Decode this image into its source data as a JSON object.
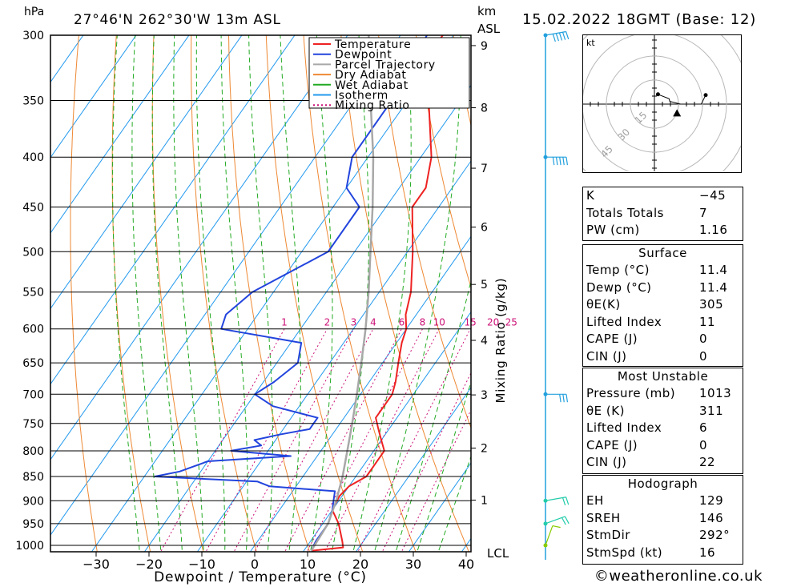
{
  "header": {
    "location": "27°46'N  262°30'W  13m  ASL",
    "datetime": "15.02.2022  18GMT  (Base: 12)",
    "hpa_label": "hPa",
    "km_label": "km",
    "asl_label": "ASL"
  },
  "chart_data": {
    "type": "line",
    "xlabel": "Dewpoint / Temperature (°C)",
    "ylabel": "hPa",
    "right_label": "Mixing Ratio (g/kg)",
    "xlim": [
      -40,
      40
    ],
    "ylim": [
      1013,
      300
    ],
    "x_ticks": [
      "−30",
      "−20",
      "−10",
      "0",
      "10",
      "20",
      "30",
      "40"
    ],
    "pressure_levels": [
      300,
      350,
      400,
      450,
      500,
      550,
      600,
      650,
      700,
      750,
      800,
      850,
      900,
      950,
      1000
    ],
    "km_ticks": [
      "1",
      "2",
      "3",
      "4",
      "5",
      "6",
      "7",
      "8",
      "9"
    ],
    "lcl_label": "LCL",
    "mixing_ratio_labels": [
      "1",
      "2",
      "3",
      "4",
      "6",
      "8",
      "10",
      "15",
      "20",
      "25"
    ],
    "legend": [
      "Temperature",
      "Dewpoint",
      "Parcel Trajectory",
      "Dry Adiabat",
      "Wet Adiabat",
      "Isotherm",
      "Mixing Ratio"
    ],
    "colors": {
      "temperature": "#ee2222",
      "dewpoint": "#2244dd",
      "parcel": "#a8a8a8",
      "dry_adiabat": "#ee8833",
      "wet_adiabat": "#22aa22",
      "isotherm": "#2299ee",
      "mixing_ratio": "#cc1177"
    },
    "series": [
      {
        "name": "Temperature",
        "points": [
          [
            1013,
            11.4
          ],
          [
            1005,
            17
          ],
          [
            990,
            16
          ],
          [
            950,
            13
          ],
          [
            920,
            10
          ],
          [
            890,
            9.5
          ],
          [
            870,
            10
          ],
          [
            850,
            12
          ],
          [
            830,
            12
          ],
          [
            800,
            12
          ],
          [
            780,
            10
          ],
          [
            760,
            8
          ],
          [
            740,
            6
          ],
          [
            720,
            6
          ],
          [
            700,
            6
          ],
          [
            680,
            5
          ],
          [
            650,
            3
          ],
          [
            620,
            1
          ],
          [
            600,
            0
          ],
          [
            580,
            -2
          ],
          [
            550,
            -4
          ],
          [
            500,
            -9
          ],
          [
            450,
            -15
          ],
          [
            430,
            -15
          ],
          [
            400,
            -18
          ],
          [
            350,
            -26
          ],
          [
            310,
            -32
          ],
          [
            300,
            -32
          ]
        ]
      },
      {
        "name": "Dewpoint",
        "points": [
          [
            1013,
            11.4
          ],
          [
            990,
            11
          ],
          [
            950,
            11
          ],
          [
            920,
            10
          ],
          [
            900,
            9
          ],
          [
            880,
            8
          ],
          [
            870,
            -5
          ],
          [
            860,
            -8
          ],
          [
            850,
            -28
          ],
          [
            840,
            -24
          ],
          [
            830,
            -22
          ],
          [
            820,
            -20
          ],
          [
            810,
            -5
          ],
          [
            800,
            -17
          ],
          [
            790,
            -12
          ],
          [
            780,
            -14
          ],
          [
            770,
            -10
          ],
          [
            760,
            -5
          ],
          [
            740,
            -5
          ],
          [
            720,
            -15
          ],
          [
            700,
            -20
          ],
          [
            680,
            -18
          ],
          [
            650,
            -16
          ],
          [
            620,
            -18
          ],
          [
            600,
            -35
          ],
          [
            580,
            -36
          ],
          [
            550,
            -34
          ],
          [
            500,
            -25
          ],
          [
            450,
            -25
          ],
          [
            430,
            -30
          ],
          [
            400,
            -33
          ],
          [
            350,
            -33
          ],
          [
            320,
            -34
          ],
          [
            300,
            -35
          ]
        ]
      },
      {
        "name": "Parcel Trajectory",
        "points": [
          [
            1013,
            11.4
          ],
          [
            950,
            11
          ],
          [
            900,
            9.5
          ],
          [
            850,
            7.5
          ],
          [
            800,
            5
          ],
          [
            750,
            2.3
          ],
          [
            700,
            -0.7
          ],
          [
            650,
            -4
          ],
          [
            600,
            -7.7
          ],
          [
            550,
            -12
          ],
          [
            500,
            -17
          ],
          [
            450,
            -22.5
          ],
          [
            400,
            -29
          ],
          [
            350,
            -37
          ],
          [
            300,
            -46
          ]
        ]
      }
    ],
    "wind_barbs": [
      {
        "pressure": 1000,
        "dir_deg": 200,
        "speed_kt": 10
      },
      {
        "pressure": 950,
        "dir_deg": 250,
        "speed_kt": 15
      },
      {
        "pressure": 900,
        "dir_deg": 260,
        "speed_kt": 15
      },
      {
        "pressure": 700,
        "dir_deg": 270,
        "speed_kt": 25
      },
      {
        "pressure": 400,
        "dir_deg": 270,
        "speed_kt": 45
      },
      {
        "pressure": 300,
        "dir_deg": 260,
        "speed_kt": 50
      }
    ]
  },
  "hodograph": {
    "unit": "kt",
    "ring_labels": [
      "15",
      "30",
      "45"
    ]
  },
  "indices": [
    {
      "label": "K",
      "value": "−45"
    },
    {
      "label": "Totals Totals",
      "value": "7"
    },
    {
      "label": "PW (cm)",
      "value": "1.16"
    }
  ],
  "surface": {
    "title": "Surface",
    "rows": [
      {
        "label": "Temp (°C)",
        "value": "11.4"
      },
      {
        "label": "Dewp (°C)",
        "value": "11.4"
      },
      {
        "label": "θE(K)",
        "value": "305"
      },
      {
        "label": "Lifted Index",
        "value": "11"
      },
      {
        "label": "CAPE (J)",
        "value": "0"
      },
      {
        "label": "CIN (J)",
        "value": "0"
      }
    ]
  },
  "most_unstable": {
    "title": "Most Unstable",
    "rows": [
      {
        "label": "Pressure (mb)",
        "value": "1013"
      },
      {
        "label": "θE (K)",
        "value": "311"
      },
      {
        "label": "Lifted Index",
        "value": "6"
      },
      {
        "label": "CAPE (J)",
        "value": "0"
      },
      {
        "label": "CIN (J)",
        "value": "22"
      }
    ]
  },
  "hodograph_table": {
    "title": "Hodograph",
    "rows": [
      {
        "label": "EH",
        "value": "129"
      },
      {
        "label": "SREH",
        "value": "146"
      },
      {
        "label": "StmDir",
        "value": "292°"
      },
      {
        "label": "StmSpd (kt)",
        "value": "16"
      }
    ]
  },
  "footer": {
    "credit": "©weatheronline.co.uk"
  }
}
